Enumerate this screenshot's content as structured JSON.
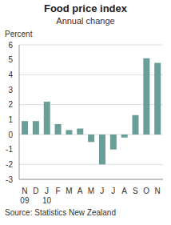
{
  "chart_data": {
    "type": "bar",
    "title": "Food price index",
    "subtitle": "Annual change",
    "y_label": "Percent",
    "source": "Source: Statistics New Zealand",
    "categories": [
      "N",
      "D",
      "J",
      "F",
      "M",
      "A",
      "M",
      "J",
      "J",
      "A",
      "S",
      "O",
      "N"
    ],
    "year_labels": [
      "09",
      null,
      "10",
      null,
      null,
      null,
      null,
      null,
      null,
      null,
      null,
      null,
      null
    ],
    "values": [
      0.9,
      0.9,
      2.2,
      0.7,
      0.3,
      0.4,
      -0.5,
      -2.0,
      -1.0,
      -0.2,
      1.3,
      5.1,
      4.8
    ],
    "color": "#6a9e99",
    "ylim": [
      -3,
      6
    ],
    "yticks": [
      -3,
      -2,
      -1,
      0,
      1,
      2,
      3,
      4,
      5,
      6
    ],
    "grid": true
  }
}
